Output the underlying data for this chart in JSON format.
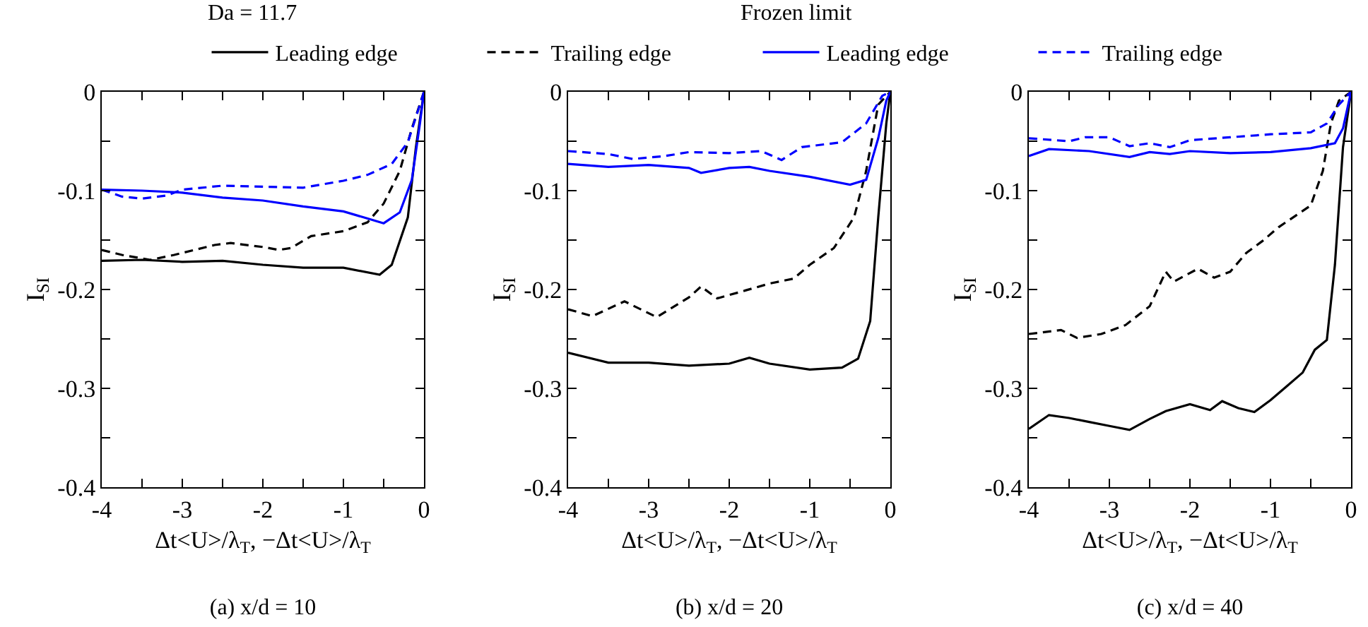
{
  "chart_data": [
    {
      "type": "line",
      "title": "(a) x/d = 10",
      "xlabel": "Δt<U>/λ$_{T}$, −Δt<U>/λ$_{T}$",
      "ylabel": "I$_{SI}$",
      "annotations": [
        "Da = 11.7",
        "Frozen limit"
      ],
      "legend": "top",
      "xlim": [
        -4,
        0
      ],
      "xticks": [
        -4,
        {
          "value": -3.5,
          "label": null
        },
        -3,
        {
          "value": -2.5,
          "label": null
        },
        -2,
        {
          "value": -1.5,
          "label": null
        },
        -1,
        {
          "value": -0.5,
          "label": null
        },
        0
      ],
      "ylim": [
        -0.4,
        0
      ],
      "yticks": [
        -0.4,
        {
          "value": -0.35,
          "label": null
        },
        -0.3,
        {
          "value": -0.25,
          "label": null
        },
        -0.2,
        {
          "value": -0.15,
          "label": null
        },
        -0.1,
        {
          "value": -0.05,
          "label": null
        },
        0
      ],
      "series": [
        {
          "name": "Leading edge",
          "color": "#000000",
          "line_style": "solid",
          "x": [
            -4,
            -3.5,
            -3,
            -2.5,
            -2,
            -1.5,
            -1,
            -0.55,
            -0.4,
            -0.2,
            -0.1,
            0
          ],
          "values": [
            -0.171,
            -0.17,
            -0.172,
            -0.171,
            -0.175,
            -0.178,
            -0.178,
            -0.185,
            -0.175,
            -0.127,
            -0.056,
            0
          ]
        },
        {
          "name": "Trailing edge",
          "color": "#000000",
          "line_style": "dashed",
          "x": [
            -4,
            -3.75,
            -3.4,
            -3.1,
            -2.6,
            -2.4,
            -2,
            -1.8,
            -1.65,
            -1.4,
            -1,
            -0.7,
            -0.5,
            -0.3,
            -0.15,
            0
          ],
          "values": [
            -0.16,
            -0.165,
            -0.17,
            -0.165,
            -0.155,
            -0.153,
            -0.157,
            -0.16,
            -0.158,
            -0.146,
            -0.141,
            -0.132,
            -0.113,
            -0.08,
            -0.037,
            0
          ]
        },
        {
          "name": "Leading edge",
          "color": "#0000ff",
          "line_style": "solid",
          "x": [
            -4,
            -3.5,
            -3,
            -2.5,
            -2,
            -1.5,
            -1,
            -0.75,
            -0.5,
            -0.3,
            -0.15,
            -0.05,
            0
          ],
          "values": [
            -0.099,
            -0.1,
            -0.102,
            -0.107,
            -0.11,
            -0.116,
            -0.121,
            -0.127,
            -0.133,
            -0.122,
            -0.089,
            -0.032,
            0
          ]
        },
        {
          "name": "Trailing edge",
          "color": "#0000ff",
          "line_style": "dashed",
          "x": [
            -4,
            -3.75,
            -3.5,
            -3.2,
            -3,
            -2.5,
            -2,
            -1.5,
            -1,
            -0.7,
            -0.4,
            -0.2,
            -0.05,
            0
          ],
          "values": [
            -0.099,
            -0.106,
            -0.108,
            -0.105,
            -0.099,
            -0.095,
            -0.096,
            -0.097,
            -0.09,
            -0.084,
            -0.073,
            -0.051,
            -0.013,
            0
          ]
        }
      ]
    },
    {
      "type": "line",
      "title": "(b) x/d = 20",
      "xlabel": "Δt<U>/λ$_{T}$, −Δt<U>/λ$_{T}$",
      "ylabel": "I$_{SI}$",
      "xlim": [
        -4,
        0
      ],
      "xticks": [
        -4,
        {
          "value": -3.5,
          "label": null
        },
        -3,
        {
          "value": -2.5,
          "label": null
        },
        -2,
        {
          "value": -1.5,
          "label": null
        },
        -1,
        {
          "value": -0.5,
          "label": null
        },
        0
      ],
      "ylim": [
        -0.4,
        0
      ],
      "yticks": [
        -0.4,
        {
          "value": -0.35,
          "label": null
        },
        -0.3,
        {
          "value": -0.25,
          "label": null
        },
        -0.2,
        {
          "value": -0.15,
          "label": null
        },
        -0.1,
        {
          "value": -0.05,
          "label": null
        },
        0
      ],
      "series": [
        {
          "color": "#000000",
          "line_style": "solid",
          "x": [
            -4,
            -3.5,
            -3,
            -2.5,
            -2,
            -1.75,
            -1.5,
            -1,
            -0.6,
            -0.4,
            -0.25,
            -0.15,
            -0.05,
            0
          ],
          "values": [
            -0.264,
            -0.274,
            -0.274,
            -0.277,
            -0.275,
            -0.269,
            -0.275,
            -0.281,
            -0.279,
            -0.27,
            -0.232,
            -0.127,
            -0.032,
            0
          ]
        },
        {
          "color": "#000000",
          "line_style": "dashed",
          "x": [
            -4,
            -3.7,
            -3.3,
            -2.9,
            -2.5,
            -2.35,
            -2.15,
            -1.8,
            -1.5,
            -1.2,
            -1,
            -0.7,
            -0.45,
            -0.3,
            -0.15,
            0
          ],
          "values": [
            -0.22,
            -0.227,
            -0.212,
            -0.228,
            -0.208,
            -0.197,
            -0.209,
            -0.201,
            -0.194,
            -0.189,
            -0.175,
            -0.158,
            -0.127,
            -0.08,
            -0.013,
            0
          ]
        },
        {
          "color": "#0000ff",
          "line_style": "solid",
          "x": [
            -4,
            -3.5,
            -3,
            -2.5,
            -2.35,
            -2,
            -1.75,
            -1.5,
            -1,
            -0.5,
            -0.3,
            -0.15,
            -0.05,
            0
          ],
          "values": [
            -0.073,
            -0.076,
            -0.074,
            -0.077,
            -0.082,
            -0.077,
            -0.076,
            -0.08,
            -0.086,
            -0.094,
            -0.089,
            -0.047,
            -0.009,
            0
          ]
        },
        {
          "color": "#0000ff",
          "line_style": "dashed",
          "x": [
            -4,
            -3.5,
            -3.2,
            -2.8,
            -2.5,
            -2,
            -1.6,
            -1.35,
            -1.1,
            -0.6,
            -0.3,
            -0.1,
            0
          ],
          "values": [
            -0.06,
            -0.063,
            -0.068,
            -0.065,
            -0.061,
            -0.062,
            -0.06,
            -0.069,
            -0.056,
            -0.051,
            -0.032,
            -0.004,
            0
          ]
        }
      ]
    },
    {
      "type": "line",
      "title": "(c) x/d = 40",
      "xlabel": "Δt<U>/λ$_{T}$, −Δt<U>/λ$_{T}$",
      "ylabel": "I$_{SI}$",
      "xlim": [
        -4,
        0
      ],
      "xticks": [
        -4,
        {
          "value": -3.5,
          "label": null
        },
        -3,
        {
          "value": -2.5,
          "label": null
        },
        -2,
        {
          "value": -1.5,
          "label": null
        },
        -1,
        {
          "value": -0.5,
          "label": null
        },
        0
      ],
      "ylim": [
        -0.4,
        0
      ],
      "yticks": [
        -0.4,
        {
          "value": -0.35,
          "label": null
        },
        -0.3,
        {
          "value": -0.25,
          "label": null
        },
        -0.2,
        {
          "value": -0.15,
          "label": null
        },
        -0.1,
        {
          "value": -0.05,
          "label": null
        },
        0
      ],
      "series": [
        {
          "color": "#000000",
          "line_style": "solid",
          "x": [
            -4,
            -3.75,
            -3.5,
            -3.25,
            -3,
            -2.75,
            -2.5,
            -2.3,
            -2,
            -1.75,
            -1.6,
            -1.4,
            -1.2,
            -1,
            -0.8,
            -0.6,
            -0.45,
            -0.3,
            -0.2,
            -0.1,
            0
          ],
          "values": [
            -0.341,
            -0.327,
            -0.33,
            -0.334,
            -0.338,
            -0.342,
            -0.331,
            -0.323,
            -0.316,
            -0.322,
            -0.313,
            -0.32,
            -0.324,
            -0.312,
            -0.298,
            -0.284,
            -0.261,
            -0.251,
            -0.175,
            -0.056,
            0
          ]
        },
        {
          "color": "#000000",
          "line_style": "dashed",
          "x": [
            -4,
            -3.6,
            -3.4,
            -3.1,
            -2.8,
            -2.5,
            -2.3,
            -2.2,
            -1.9,
            -1.7,
            -1.5,
            -1.3,
            -1.1,
            -0.9,
            -0.5,
            -0.35,
            -0.25,
            -0.15,
            0
          ],
          "values": [
            -0.245,
            -0.241,
            -0.249,
            -0.245,
            -0.236,
            -0.217,
            -0.182,
            -0.192,
            -0.179,
            -0.188,
            -0.182,
            -0.163,
            -0.151,
            -0.137,
            -0.115,
            -0.08,
            -0.032,
            -0.009,
            0
          ]
        },
        {
          "color": "#0000ff",
          "line_style": "solid",
          "x": [
            -4,
            -3.75,
            -3.25,
            -2.75,
            -2.5,
            -2.25,
            -2,
            -1.5,
            -1,
            -0.5,
            -0.2,
            -0.1,
            0
          ],
          "values": [
            -0.065,
            -0.058,
            -0.06,
            -0.066,
            -0.061,
            -0.063,
            -0.06,
            -0.062,
            -0.061,
            -0.057,
            -0.052,
            -0.037,
            0
          ]
        },
        {
          "color": "#0000ff",
          "line_style": "dashed",
          "x": [
            -4,
            -3.5,
            -3.3,
            -3,
            -2.75,
            -2.5,
            -2.25,
            -2,
            -1.5,
            -1,
            -0.5,
            -0.3,
            -0.15,
            0
          ],
          "values": [
            -0.047,
            -0.05,
            -0.046,
            -0.046,
            -0.055,
            -0.052,
            -0.056,
            -0.049,
            -0.046,
            -0.043,
            -0.041,
            -0.032,
            -0.013,
            0
          ]
        }
      ]
    }
  ]
}
